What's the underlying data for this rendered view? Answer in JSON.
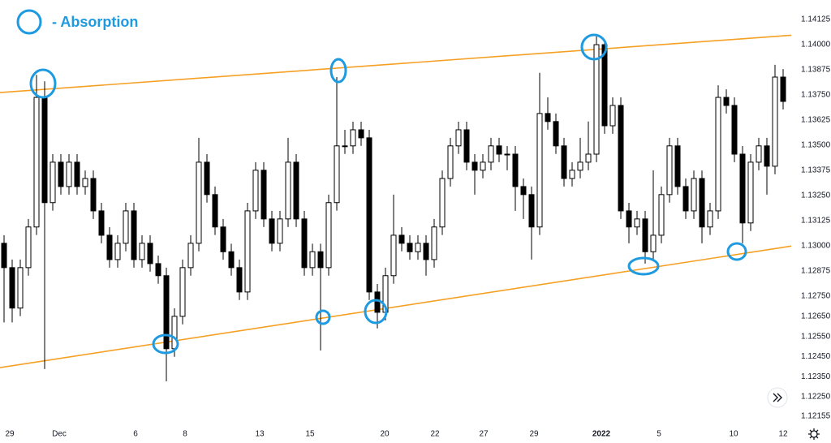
{
  "chart_data": {
    "type": "candlestick",
    "annotation": "- Absorption",
    "bull_color": "#ffffff",
    "bear_color": "#000000",
    "annotation_color": "#1e9ae0",
    "xlim": [
      -0.5,
      97
    ],
    "ylim": [
      1.12085,
      1.14222
    ],
    "xticks": [
      {
        "value": 0.7,
        "label": "29"
      },
      {
        "value": 6.8,
        "label": "Dec"
      },
      {
        "value": 16.2,
        "label": "6"
      },
      {
        "value": 22.3,
        "label": "8"
      },
      {
        "value": 31.5,
        "label": "13"
      },
      {
        "value": 37.7,
        "label": "15"
      },
      {
        "value": 46.9,
        "label": "20"
      },
      {
        "value": 53.1,
        "label": "22"
      },
      {
        "value": 59.1,
        "label": "27"
      },
      {
        "value": 65.3,
        "label": "29"
      },
      {
        "value": 73.6,
        "label": "2022",
        "bold": true
      },
      {
        "value": 80.7,
        "label": "5"
      },
      {
        "value": 89.9,
        "label": "10"
      },
      {
        "value": 96.0,
        "label": "12"
      }
    ],
    "yticks": [
      1.14125,
      {
        "value": 1.14,
        "label": "1.14000"
      },
      1.13875,
      {
        "value": 1.1375,
        "label": "1.13750"
      },
      1.13625,
      {
        "value": 1.135,
        "label": "1.13500"
      },
      1.13375,
      {
        "value": 1.1325,
        "label": "1.13250"
      },
      1.13125,
      {
        "value": 1.13,
        "label": "1.13000"
      },
      1.12875,
      {
        "value": 1.1275,
        "label": "1.12750"
      },
      {
        "value": 1.1265,
        "label": "1.12650"
      },
      {
        "value": 1.1255,
        "label": "1.12550"
      },
      {
        "value": 1.1245,
        "label": "1.12450"
      },
      {
        "value": 1.1235,
        "label": "1.12350"
      },
      {
        "value": 1.1225,
        "label": "1.12250"
      },
      1.12155
    ],
    "grid": false,
    "open": [
      1.13013,
      1.12892,
      1.12691,
      1.12892,
      1.13094,
      1.13738,
      1.13215,
      1.13416,
      1.13295,
      1.13416,
      1.13295,
      1.13335,
      1.13174,
      1.13053,
      1.12932,
      1.13013,
      1.13174,
      1.12932,
      1.13013,
      1.12912,
      1.12852,
      1.12489,
      1.1265,
      1.12892,
      1.13013,
      1.13416,
      1.13255,
      1.13094,
      1.12971,
      1.12892,
      1.12771,
      1.13174,
      1.13376,
      1.13134,
      1.13013,
      1.13134,
      1.13416,
      1.13134,
      1.12892,
      1.12971,
      1.12892,
      1.13215,
      1.13497,
      1.13497,
      1.13577,
      1.13537,
      1.12771,
      1.1267,
      1.12852,
      1.13053,
      1.13013,
      1.12971,
      1.13013,
      1.12932,
      1.13094,
      1.13335,
      1.13497,
      1.13577,
      1.13416,
      1.13376,
      1.13416,
      1.13497,
      1.13456,
      1.13456,
      1.13295,
      1.13255,
      1.13094,
      1.13658,
      1.13618,
      1.13497,
      1.13335,
      1.13376,
      1.13416,
      1.13456,
      1.14,
      1.13597,
      1.13698,
      1.13174,
      1.13094,
      1.13134,
      1.12971,
      1.13053,
      1.13255,
      1.13497,
      1.13295,
      1.13174,
      1.13335,
      1.13094,
      1.13174,
      1.13738,
      1.13698,
      1.13456,
      1.13114,
      1.13416,
      1.13497,
      1.13396,
      1.13839
    ],
    "high": [
      1.13053,
      1.12932,
      1.12932,
      1.13134,
      1.1385,
      1.13818,
      1.13456,
      1.13456,
      1.13456,
      1.13456,
      1.13375,
      1.13375,
      1.13214,
      1.13093,
      1.13053,
      1.13214,
      1.13214,
      1.13053,
      1.13053,
      1.12952,
      1.12892,
      1.1269,
      1.12932,
      1.13053,
      1.13537,
      1.13456,
      1.13295,
      1.13134,
      1.13011,
      1.12932,
      1.13214,
      1.13416,
      1.13416,
      1.13174,
      1.13174,
      1.13537,
      1.13456,
      1.13174,
      1.13011,
      1.13011,
      1.13255,
      1.13839,
      1.13577,
      1.13617,
      1.13617,
      1.13577,
      1.12811,
      1.12892,
      1.13255,
      1.13093,
      1.13053,
      1.13053,
      1.13053,
      1.13134,
      1.13375,
      1.13537,
      1.13617,
      1.13617,
      1.13456,
      1.13456,
      1.13537,
      1.13537,
      1.13496,
      1.13496,
      1.13335,
      1.13295,
      1.1386,
      1.13738,
      1.13658,
      1.13537,
      1.13416,
      1.13537,
      1.13618,
      1.14041,
      1.1402,
      1.13738,
      1.13738,
      1.13214,
      1.13174,
      1.13174,
      1.13376,
      1.13295,
      1.13537,
      1.13537,
      1.13335,
      1.13375,
      1.13375,
      1.13214,
      1.13798,
      1.13778,
      1.13738,
      1.13496,
      1.13456,
      1.13537,
      1.13537,
      1.139,
      1.13879
    ],
    "low": [
      1.1262,
      1.1262,
      1.12651,
      1.12852,
      1.13054,
      1.12388,
      1.13175,
      1.13255,
      1.13255,
      1.13255,
      1.13255,
      1.13134,
      1.13013,
      1.12892,
      1.12892,
      1.12973,
      1.12892,
      1.12892,
      1.12872,
      1.12812,
      1.12327,
      1.12449,
      1.1261,
      1.12852,
      1.12973,
      1.13215,
      1.13054,
      1.12931,
      1.12852,
      1.12731,
      1.12731,
      1.13134,
      1.13094,
      1.12973,
      1.12973,
      1.13094,
      1.13094,
      1.12852,
      1.12852,
      1.1248,
      1.12852,
      1.13175,
      1.13457,
      1.13457,
      1.13497,
      1.12731,
      1.1259,
      1.1263,
      1.12812,
      1.12973,
      1.12931,
      1.12931,
      1.12852,
      1.12892,
      1.13054,
      1.13295,
      1.13457,
      1.13376,
      1.13255,
      1.13336,
      1.13376,
      1.13416,
      1.13376,
      1.13174,
      1.13134,
      1.12932,
      1.13054,
      1.13578,
      1.13457,
      1.13295,
      1.13295,
      1.13336,
      1.13376,
      1.13416,
      1.13557,
      1.13557,
      1.13134,
      1.13013,
      1.13054,
      1.12912,
      1.12931,
      1.13013,
      1.13215,
      1.13255,
      1.13134,
      1.13134,
      1.13013,
      1.13054,
      1.13134,
      1.13658,
      1.13416,
      1.13013,
      1.13074,
      1.13376,
      1.13255,
      1.13356,
      1.13678
    ],
    "close": [
      1.12892,
      1.12691,
      1.12892,
      1.13094,
      1.13738,
      1.13215,
      1.13416,
      1.13295,
      1.13416,
      1.13295,
      1.13335,
      1.13174,
      1.13053,
      1.12932,
      1.13013,
      1.13174,
      1.12932,
      1.13013,
      1.12912,
      1.12852,
      1.12489,
      1.1265,
      1.12892,
      1.13013,
      1.13416,
      1.13255,
      1.13094,
      1.12971,
      1.12892,
      1.12771,
      1.13174,
      1.13376,
      1.13134,
      1.13013,
      1.13134,
      1.13416,
      1.13134,
      1.12892,
      1.12971,
      1.12892,
      1.13215,
      1.13497,
      1.13497,
      1.13577,
      1.13537,
      1.12771,
      1.1267,
      1.12852,
      1.13053,
      1.13013,
      1.12971,
      1.13013,
      1.12932,
      1.13094,
      1.13335,
      1.13497,
      1.13577,
      1.13416,
      1.13376,
      1.13416,
      1.13497,
      1.13456,
      1.13456,
      1.13295,
      1.13255,
      1.13094,
      1.13658,
      1.13618,
      1.13497,
      1.13335,
      1.13376,
      1.13416,
      1.13456,
      1.14,
      1.13597,
      1.13698,
      1.13174,
      1.13094,
      1.13134,
      1.12971,
      1.13053,
      1.13255,
      1.13497,
      1.13295,
      1.13174,
      1.13335,
      1.13094,
      1.13174,
      1.13738,
      1.13698,
      1.13456,
      1.13114,
      1.13416,
      1.13497,
      1.13396,
      1.13839,
      1.13718
    ],
    "trendlines": [
      {
        "color": "#f5a024",
        "x": [
          -0.5,
          97
        ],
        "y": [
          1.13762,
          1.14047
        ]
      },
      {
        "color": "#f5a024",
        "x": [
          -0.5,
          97
        ],
        "y": [
          1.12395,
          1.12999
        ]
      }
    ]
  }
}
